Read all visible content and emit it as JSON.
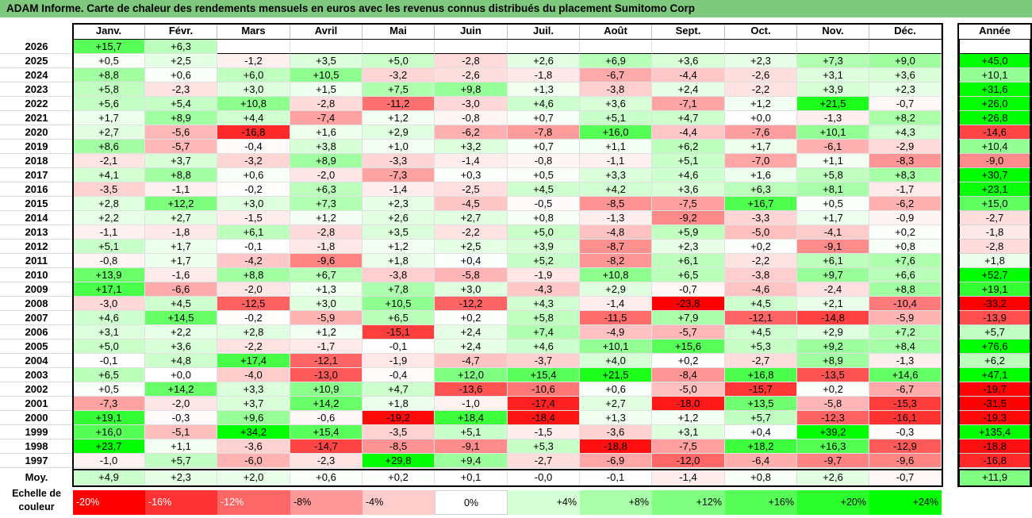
{
  "title": "ADAM Informe. Carte de chaleur des rendements mensuels en euros avec les revenus connus distribués du placement Sumitomo Corp",
  "chart_data": {
    "type": "heatmap",
    "title": "ADAM Informe. Carte de chaleur des rendements mensuels en euros avec les revenus connus distribués du placement Sumitomo Corp",
    "months": [
      "Janv.",
      "Févr.",
      "Mars",
      "Avril",
      "Mai",
      "Juin",
      "Juil.",
      "Août",
      "Sept.",
      "Oct.",
      "Nov.",
      "Déc."
    ],
    "year_header": "Année",
    "rows": [
      {
        "year": "2026",
        "values": [
          "+15,7",
          "+6,3",
          "",
          "",
          "",
          "",
          "",
          "",
          "",
          "",
          "",
          ""
        ],
        "annual": ""
      },
      {
        "year": "2025",
        "values": [
          "+0,5",
          "+2,5",
          "-1,2",
          "+3,5",
          "+5,0",
          "-2,8",
          "+2,6",
          "+6,9",
          "+3,6",
          "+2,3",
          "+7,3",
          "+9,0"
        ],
        "annual": "+45,0"
      },
      {
        "year": "2024",
        "values": [
          "+8,8",
          "+0,6",
          "+6,0",
          "+10,5",
          "-3,2",
          "-2,6",
          "-1,8",
          "-6,7",
          "-4,4",
          "-2,6",
          "+3,1",
          "+3,6"
        ],
        "annual": "+10,1"
      },
      {
        "year": "2023",
        "values": [
          "+5,8",
          "-2,3",
          "+3,0",
          "+1,5",
          "+7,5",
          "+9,8",
          "+1,3",
          "-3,8",
          "+2,4",
          "-2,2",
          "+3,9",
          "+2,3"
        ],
        "annual": "+31,6"
      },
      {
        "year": "2022",
        "values": [
          "+5,6",
          "+5,4",
          "+10,8",
          "-2,8",
          "-11,2",
          "-3,0",
          "+4,6",
          "+3,6",
          "-7,1",
          "+1,2",
          "+21,5",
          "-0,7"
        ],
        "annual": "+26,0"
      },
      {
        "year": "2021",
        "values": [
          "+1,7",
          "+8,9",
          "+4,4",
          "-7,4",
          "+1,2",
          "-0,8",
          "+0,7",
          "+5,1",
          "+4,7",
          "+0,0",
          "-1,3",
          "+8,2"
        ],
        "annual": "+26,8"
      },
      {
        "year": "2020",
        "values": [
          "+2,7",
          "-5,6",
          "-16,8",
          "+1,6",
          "+2,9",
          "-6,2",
          "-7,8",
          "+16,0",
          "-4,4",
          "-7,6",
          "+10,1",
          "+4,3"
        ],
        "annual": "-14,6"
      },
      {
        "year": "2019",
        "values": [
          "+8,6",
          "-5,7",
          "-0,4",
          "+3,8",
          "+1,0",
          "+3,2",
          "+0,7",
          "+1,1",
          "+6,2",
          "+1,7",
          "-6,1",
          "-2,9"
        ],
        "annual": "+10,4"
      },
      {
        "year": "2018",
        "values": [
          "-2,1",
          "+3,7",
          "-3,2",
          "+8,9",
          "-3,3",
          "-1,4",
          "-0,8",
          "-1,1",
          "+5,1",
          "-7,0",
          "+1,1",
          "-8,3"
        ],
        "annual": "-9,0"
      },
      {
        "year": "2017",
        "values": [
          "+4,1",
          "+8,8",
          "+0,6",
          "-2,0",
          "-7,3",
          "+0,3",
          "+0,5",
          "+3,3",
          "+4,6",
          "+1,6",
          "+5,8",
          "+8,3"
        ],
        "annual": "+30,7"
      },
      {
        "year": "2016",
        "values": [
          "-3,5",
          "-1,1",
          "-0,2",
          "+6,3",
          "-1,4",
          "-2,5",
          "+4,5",
          "+4,2",
          "+3,6",
          "+6,3",
          "+8,1",
          "-1,7"
        ],
        "annual": "+23,1"
      },
      {
        "year": "2015",
        "values": [
          "+2,8",
          "+12,2",
          "+3,0",
          "+7,3",
          "+2,3",
          "-4,5",
          "-0,5",
          "-8,5",
          "-7,5",
          "+16,7",
          "+0,5",
          "-6,2"
        ],
        "annual": "+15,0"
      },
      {
        "year": "2014",
        "values": [
          "+2,2",
          "+2,7",
          "-1,5",
          "+1,2",
          "+2,6",
          "+2,7",
          "+0,8",
          "-1,3",
          "-9,2",
          "-3,3",
          "+1,7",
          "-0,9"
        ],
        "annual": "-2,7"
      },
      {
        "year": "2013",
        "values": [
          "-1,1",
          "-1,8",
          "+6,1",
          "-2,8",
          "+3,5",
          "-2,2",
          "+5,0",
          "-4,8",
          "+5,9",
          "-5,0",
          "-4,1",
          "+0,2"
        ],
        "annual": "-1,8"
      },
      {
        "year": "2012",
        "values": [
          "+5,1",
          "+1,7",
          "-0,1",
          "-1,8",
          "+1,2",
          "+2,5",
          "+3,9",
          "-8,7",
          "+2,3",
          "+0,2",
          "-9,1",
          "+0,8"
        ],
        "annual": "-2,8"
      },
      {
        "year": "2011",
        "values": [
          "-0,8",
          "+1,7",
          "-4,2",
          "-9,6",
          "+1,8",
          "+0,4",
          "+5,2",
          "-8,2",
          "+6,1",
          "-2,2",
          "+6,1",
          "+7,6"
        ],
        "annual": "+1,8"
      },
      {
        "year": "2010",
        "values": [
          "+13,9",
          "-1,6",
          "+8,8",
          "+6,7",
          "-3,8",
          "-5,8",
          "-1,9",
          "+10,8",
          "+6,5",
          "-3,8",
          "+9,7",
          "+6,6"
        ],
        "annual": "+52,7"
      },
      {
        "year": "2009",
        "values": [
          "+17,1",
          "-6,6",
          "-2,0",
          "+1,3",
          "+7,8",
          "+3,0",
          "-4,3",
          "+2,9",
          "-0,7",
          "-4,6",
          "-2,4",
          "+8,8"
        ],
        "annual": "+19,1"
      },
      {
        "year": "2008",
        "values": [
          "-3,0",
          "+4,5",
          "-12,5",
          "+3,0",
          "+10,5",
          "-12,2",
          "+4,3",
          "-1,4",
          "-23,8",
          "+4,5",
          "+2,1",
          "-10,4"
        ],
        "annual": "-33,2"
      },
      {
        "year": "2007",
        "values": [
          "+4,6",
          "+14,5",
          "-0,2",
          "-5,9",
          "+6,5",
          "+0,2",
          "+5,8",
          "-11,5",
          "+7,9",
          "-12,1",
          "-14,8",
          "-5,9"
        ],
        "annual": "-13,9"
      },
      {
        "year": "2006",
        "values": [
          "+3,1",
          "+2,2",
          "+2,8",
          "+1,2",
          "-15,1",
          "+2,4",
          "+7,4",
          "-4,9",
          "-5,7",
          "+4,5",
          "+2,9",
          "+7,2"
        ],
        "annual": "+5,7"
      },
      {
        "year": "2005",
        "values": [
          "+5,0",
          "+3,6",
          "-2,2",
          "-1,7",
          "-0,1",
          "+2,4",
          "+4,6",
          "+10,1",
          "+15,6",
          "+5,3",
          "+9,2",
          "+8,4"
        ],
        "annual": "+76,6"
      },
      {
        "year": "2004",
        "values": [
          "-0,1",
          "+4,8",
          "+17,4",
          "-12,1",
          "-1,9",
          "-4,7",
          "-3,7",
          "+4,0",
          "+0,2",
          "-2,7",
          "+8,9",
          "-1,3"
        ],
        "annual": "+6,2"
      },
      {
        "year": "2003",
        "values": [
          "+6,5",
          "+0,0",
          "-4,0",
          "-13,0",
          "-0,4",
          "+12,0",
          "+15,4",
          "+21,5",
          "-8,4",
          "+16,8",
          "-13,5",
          "+14,6"
        ],
        "annual": "+47,1"
      },
      {
        "year": "2002",
        "values": [
          "+0,5",
          "+14,2",
          "+3,3",
          "+10,9",
          "+4,7",
          "-13,6",
          "-10,6",
          "+0,6",
          "-5,0",
          "-15,7",
          "+0,2",
          "-6,7"
        ],
        "annual": "-19,7"
      },
      {
        "year": "2001",
        "values": [
          "-7,3",
          "-2,0",
          "+3,7",
          "+14,2",
          "+1,8",
          "-1,0",
          "-17,4",
          "+2,7",
          "-18,0",
          "+13,5",
          "-5,8",
          "-15,3"
        ],
        "annual": "-31,5"
      },
      {
        "year": "2000",
        "values": [
          "+19,1",
          "-0,3",
          "+9,6",
          "-0,6",
          "-19,2",
          "+18,4",
          "-18,4",
          "+1,3",
          "+1,2",
          "+5,7",
          "-12,3",
          "-16,1"
        ],
        "annual": "-19,3"
      },
      {
        "year": "1999",
        "values": [
          "+16,0",
          "-5,1",
          "+34,2",
          "+15,4",
          "-3,5",
          "+5,1",
          "-1,5",
          "-3,6",
          "+3,1",
          "+0,4",
          "+39,2",
          "-0,3"
        ],
        "annual": "+135,4"
      },
      {
        "year": "1998",
        "values": [
          "+23,7",
          "+1,1",
          "-3,6",
          "-14,7",
          "-8,5",
          "-9,1",
          "+5,3",
          "-18,8",
          "-7,5",
          "+18,2",
          "+16,3",
          "-12,9"
        ],
        "annual": "-18,8"
      },
      {
        "year": "1997",
        "values": [
          "-1,0",
          "+5,7",
          "-6,0",
          "-2,3",
          "+29,8",
          "+9,4",
          "-2,7",
          "-6,9",
          "-12,0",
          "-6,4",
          "-9,7",
          "-9,6"
        ],
        "annual": "-16,8"
      }
    ],
    "average": {
      "label": "Moy.",
      "values": [
        "+4,9",
        "+2,3",
        "+2,0",
        "+0,6",
        "+0,2",
        "+0,1",
        "-0,0",
        "-0,1",
        "-1,4",
        "+0,8",
        "+2,6",
        "-0,7"
      ],
      "annual": "+11,9"
    },
    "scale": {
      "label_line1": "Echelle de",
      "label_line2": "couleur",
      "items": [
        {
          "text": "-20%",
          "v": -20,
          "align": "left"
        },
        {
          "text": "-16%",
          "v": -16,
          "align": "left"
        },
        {
          "text": "-12%",
          "v": -12,
          "align": "left"
        },
        {
          "text": "-8%",
          "v": -8,
          "align": "left"
        },
        {
          "text": "-4%",
          "v": -4,
          "align": "left"
        },
        {
          "text": "0%",
          "v": 0,
          "align": "center"
        },
        {
          "text": "+4%",
          "v": 4,
          "align": "right"
        },
        {
          "text": "+8%",
          "v": 8,
          "align": "right"
        },
        {
          "text": "+12%",
          "v": 12,
          "align": "right"
        },
        {
          "text": "+16%",
          "v": 16,
          "align": "right"
        },
        {
          "text": "+20%",
          "v": 20,
          "align": "right"
        },
        {
          "text": "+24%",
          "v": 24,
          "align": "right"
        }
      ]
    },
    "colors": {
      "negative_max": "#ff0000",
      "neutral": "#ffffff",
      "positive_max": "#00ff00"
    }
  }
}
